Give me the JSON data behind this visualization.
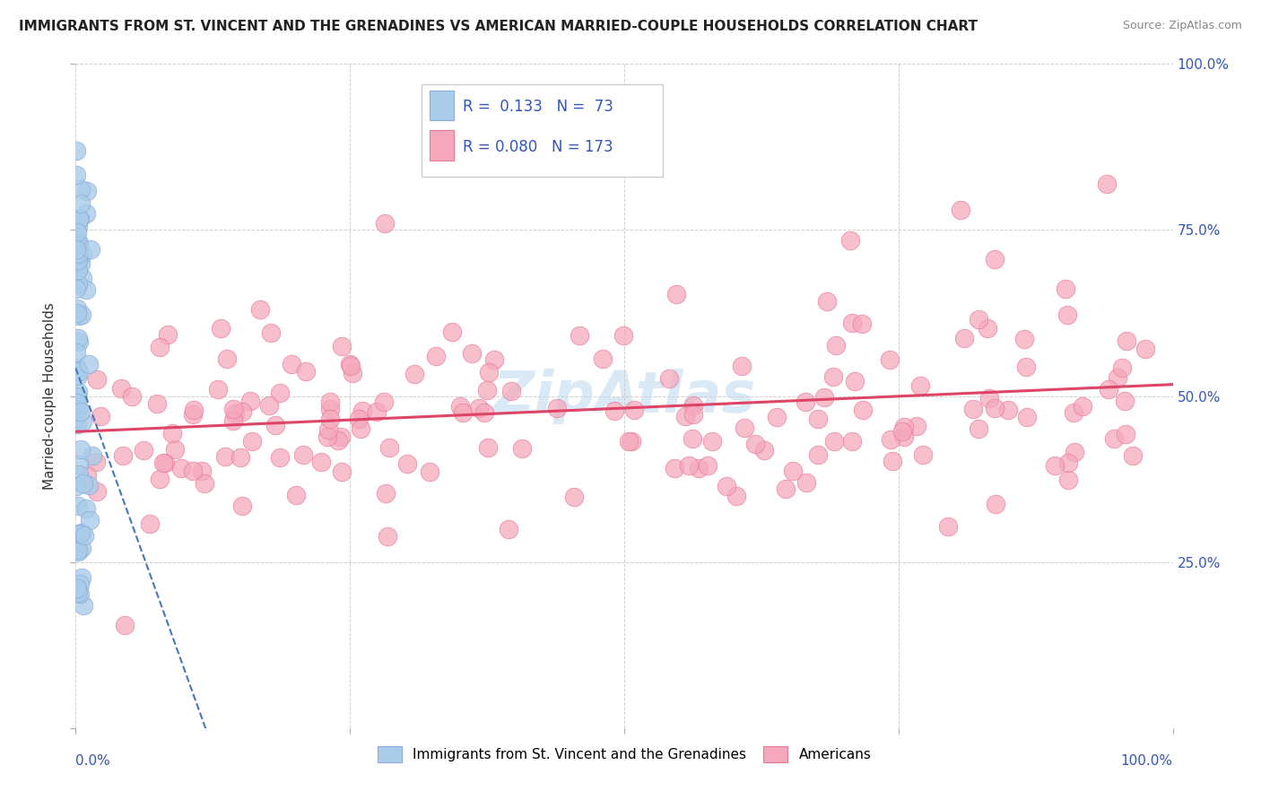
{
  "title": "IMMIGRANTS FROM ST. VINCENT AND THE GRENADINES VS AMERICAN MARRIED-COUPLE HOUSEHOLDS CORRELATION CHART",
  "source": "Source: ZipAtlas.com",
  "ylabel": "Married-couple Households",
  "xlim": [
    0,
    1
  ],
  "ylim": [
    0,
    1
  ],
  "xticks": [
    0,
    0.25,
    0.5,
    0.75,
    1.0
  ],
  "yticks": [
    0,
    0.25,
    0.5,
    0.75,
    1.0
  ],
  "xticklabels_bottom": [
    "0.0%",
    "",
    "",
    "",
    "100.0%"
  ],
  "yticklabels_left": [
    "",
    "",
    "",
    "",
    ""
  ],
  "yticklabels_right": [
    "",
    "25.0%",
    "50.0%",
    "75.0%",
    "100.0%"
  ],
  "blue_R": 0.133,
  "blue_N": 73,
  "pink_R": 0.08,
  "pink_N": 173,
  "blue_color": "#aacce8",
  "pink_color": "#f5a8bc",
  "blue_edge": "#88aadd",
  "pink_edge": "#e87898",
  "blue_trend_color": "#4477bb",
  "pink_trend_color": "#dd4466",
  "legend_label_blue": "Immigrants from St. Vincent and the Grenadines",
  "legend_label_pink": "Americans",
  "watermark": "ZipAtlas",
  "background_color": "#ffffff",
  "grid_color": "#cccccc",
  "title_color": "#222222",
  "source_color": "#888888",
  "right_tick_color": "#3355bb"
}
